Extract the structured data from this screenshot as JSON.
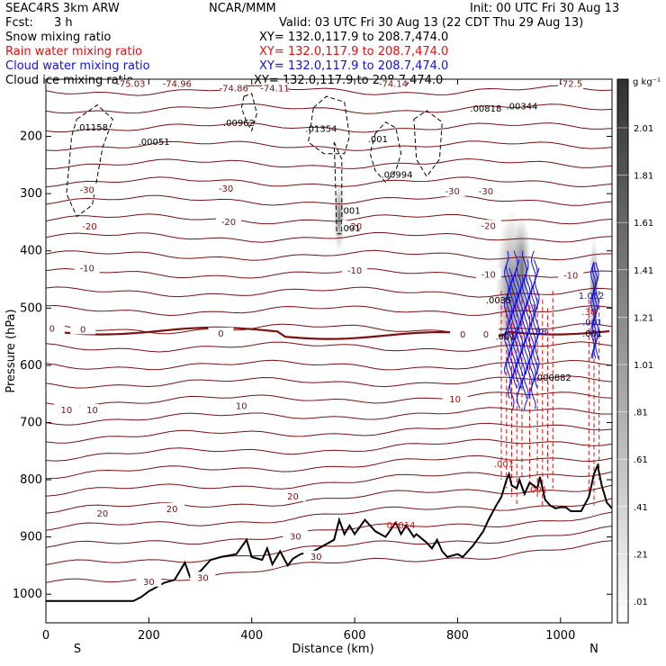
{
  "header": {
    "model": "SEAC4RS   3km  ARW",
    "org": "NCAR/MMM",
    "init": "Init: 00 UTC Fri 30 Aug 13",
    "fcst_label": "Fcst:",
    "fcst_value": "3 h",
    "valid": "Valid: 03 UTC Fri 30 Aug 13 (22 CDT Thu 29 Aug 13)"
  },
  "legend": [
    {
      "label": "Snow mixing ratio",
      "xy": "XY= 132.0,117.9 to 208.7,474.0",
      "color": "#000000"
    },
    {
      "label": "Rain water mixing ratio",
      "xy": "XY= 132.0,117.9 to 208.7,474.0",
      "color": "#e01010"
    },
    {
      "label": "Cloud water mixing ratio",
      "xy": "XY= 132.0,117.9 to 208.7,474.0",
      "color": "#1010e0"
    },
    {
      "label": "Cloud ice mixing ratio",
      "xy": "XY= 132.0,117.9 to 208.7,474.0",
      "color": "#000000"
    }
  ],
  "colors": {
    "isotherm": "#7a1010",
    "zero_isotherm": "#7a1010",
    "rain": "#e01010",
    "cloud": "#1010e0",
    "terrain": "#000000"
  },
  "chart_data": {
    "type": "cross-section",
    "xlabel": "Distance (km)",
    "ylabel": "Pressure (hPa)",
    "xlim": [
      0,
      1100
    ],
    "ylim": [
      1050,
      100
    ],
    "x_ticks": [
      "0",
      "200",
      "400",
      "600",
      "800",
      "1000"
    ],
    "y_ticks": [
      "200",
      "300",
      "400",
      "500",
      "600",
      "700",
      "800",
      "900",
      "1000"
    ],
    "x_end_labels": {
      "left": "S",
      "right": "N"
    },
    "colorbar": {
      "unit": "g kg⁻¹",
      "ticks": [
        "2.01",
        "1.81",
        "1.61",
        "1.41",
        "1.21",
        "1.01",
        ".81",
        ".61",
        ".41",
        ".21",
        ".01"
      ]
    },
    "isotherm_labels": [
      {
        "text": "-75.03",
        "x": 165,
        "p": 112
      },
      {
        "text": "-74.96",
        "x": 255,
        "p": 112
      },
      {
        "text": "-74.86",
        "x": 365,
        "p": 120
      },
      {
        "text": "-74.11",
        "x": 445,
        "p": 120
      },
      {
        "text": "-74.14",
        "x": 675,
        "p": 112
      },
      {
        "text": "-72.5",
        "x": 1020,
        "p": 112
      },
      {
        "text": "-30",
        "x": 80,
        "p": 297
      },
      {
        "text": "-30",
        "x": 350,
        "p": 295
      },
      {
        "text": "-30",
        "x": 790,
        "p": 300
      },
      {
        "text": "-30",
        "x": 855,
        "p": 300
      },
      {
        "text": "-20",
        "x": 85,
        "p": 361
      },
      {
        "text": "-20",
        "x": 355,
        "p": 353
      },
      {
        "text": "-20",
        "x": 600,
        "p": 361
      },
      {
        "text": "-20",
        "x": 860,
        "p": 360
      },
      {
        "text": "-10",
        "x": 80,
        "p": 434
      },
      {
        "text": "-10",
        "x": 600,
        "p": 438
      },
      {
        "text": "-10",
        "x": 860,
        "p": 445
      },
      {
        "text": "-10",
        "x": 1020,
        "p": 447
      },
      {
        "text": "0",
        "x": 12,
        "p": 540
      },
      {
        "text": "0",
        "x": 72,
        "p": 541
      },
      {
        "text": "0",
        "x": 340,
        "p": 548
      },
      {
        "text": "0",
        "x": 810,
        "p": 550
      },
      {
        "text": "0",
        "x": 855,
        "p": 550
      },
      {
        "text": "10",
        "x": 40,
        "p": 682
      },
      {
        "text": "10",
        "x": 90,
        "p": 682
      },
      {
        "text": "10",
        "x": 380,
        "p": 675
      },
      {
        "text": "10",
        "x": 795,
        "p": 663
      },
      {
        "text": "20",
        "x": 110,
        "p": 863
      },
      {
        "text": "20",
        "x": 245,
        "p": 855
      },
      {
        "text": "20",
        "x": 480,
        "p": 833
      },
      {
        "text": "30",
        "x": 200,
        "p": 982
      },
      {
        "text": "30",
        "x": 305,
        "p": 975
      },
      {
        "text": "30",
        "x": 485,
        "p": 903
      },
      {
        "text": "30",
        "x": 525,
        "p": 938
      }
    ],
    "max_labels": [
      {
        "text": ".01158",
        "x": 90,
        "p": 190,
        "color": "#000000"
      },
      {
        "text": ".00051",
        "x": 210,
        "p": 215,
        "color": "#000000"
      },
      {
        "text": ".00962",
        "x": 375,
        "p": 182,
        "color": "#000000"
      },
      {
        "text": ".01354",
        "x": 535,
        "p": 192,
        "color": "#000000"
      },
      {
        "text": ".001",
        "x": 645,
        "p": 210,
        "color": "#000000"
      },
      {
        "text": ".00994",
        "x": 682,
        "p": 272,
        "color": "#000000"
      },
      {
        "text": ".00818",
        "x": 855,
        "p": 157,
        "color": "#000000"
      },
      {
        "text": ".00344",
        "x": 925,
        "p": 153,
        "color": "#000000"
      },
      {
        "text": ".001",
        "x": 592,
        "p": 335,
        "color": "#000000"
      },
      {
        "text": ".001",
        "x": 592,
        "p": 366,
        "color": "#000000"
      },
      {
        "text": ".0035",
        "x": 880,
        "p": 492,
        "color": "#000000"
      },
      {
        "text": "1.052",
        "x": 1060,
        "p": 484,
        "color": "#1010e0"
      },
      {
        "text": ".001",
        "x": 1062,
        "p": 530,
        "color": "#1010e0"
      },
      {
        "text": ".001",
        "x": 1062,
        "p": 550,
        "color": "#000000"
      },
      {
        "text": ".001",
        "x": 893,
        "p": 555,
        "color": "#000000"
      },
      {
        "text": ".38",
        "x": 960,
        "p": 547,
        "color": "#1010e0"
      },
      {
        "text": ".30",
        "x": 1055,
        "p": 512,
        "color": "#e01010"
      },
      {
        "text": ".01",
        "x": 940,
        "p": 505,
        "color": "#e01010"
      },
      {
        "text": ".000882",
        "x": 985,
        "p": 627,
        "color": "#000000"
      },
      {
        "text": ".001",
        "x": 890,
        "p": 778,
        "color": "#e01010"
      },
      {
        "text": ".001",
        "x": 955,
        "p": 823,
        "color": "#e01010"
      },
      {
        "text": "00014",
        "x": 690,
        "p": 885,
        "color": "#e01010"
      }
    ]
  }
}
